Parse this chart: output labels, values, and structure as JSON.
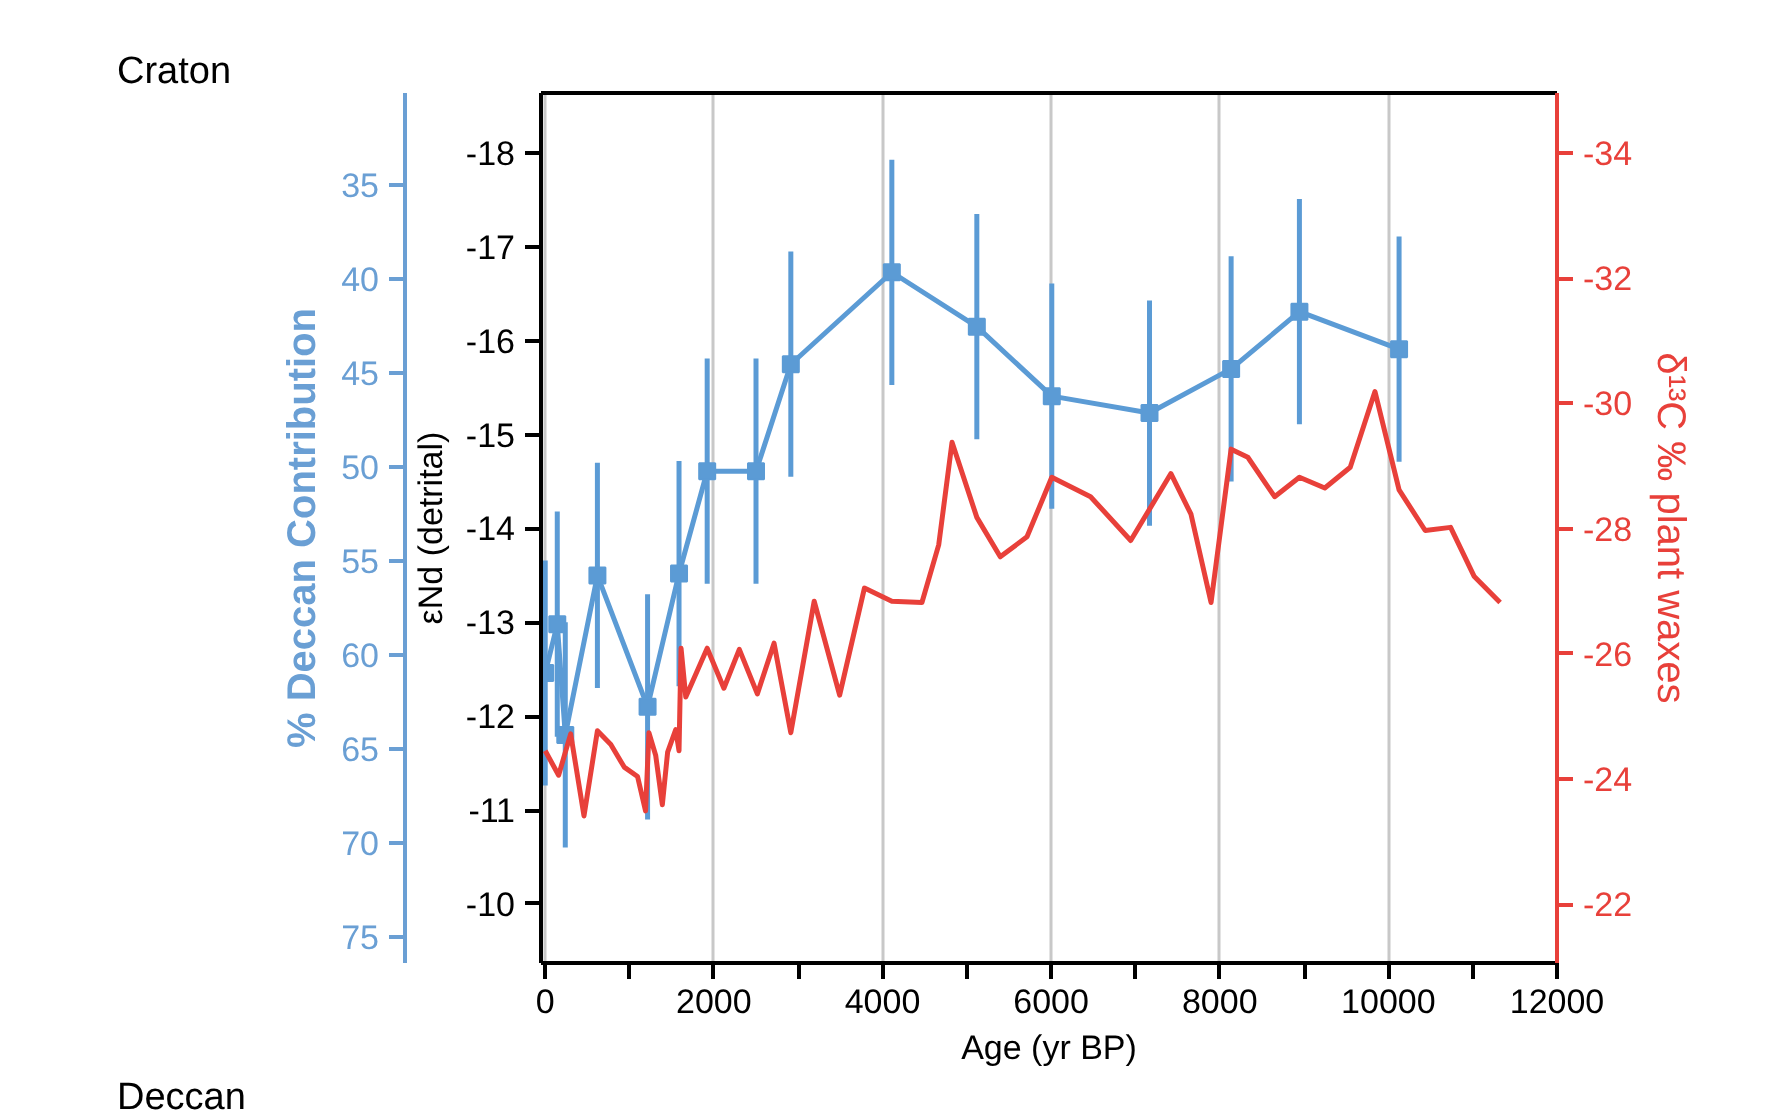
{
  "chart_data": {
    "type": "line",
    "xlabel": "Age (yr BP)",
    "ylabel": "εNd (detrital)",
    "y2label": "δ¹³C ‰ plant waxes",
    "y3label": "% Deccan Contribution",
    "annotations": [
      "Craton",
      "Deccan"
    ],
    "xlim": [
      -50,
      12000
    ],
    "xticks": [
      0,
      {
        "value": 1000,
        "label": null
      },
      2000,
      {
        "value": 3000,
        "label": null
      },
      4000,
      {
        "value": 5000,
        "label": null
      },
      6000,
      {
        "value": 7000,
        "label": null
      },
      8000,
      {
        "value": 9000,
        "label": null
      },
      10000,
      {
        "value": 11000,
        "label": null
      },
      12000
    ],
    "ylim": [
      -9.37,
      -18.64
    ],
    "yticks": [
      -10,
      -11,
      -12,
      -13,
      -14,
      -15,
      -16,
      -17,
      -18
    ],
    "y2lim": [
      -21.06,
      -34.96
    ],
    "y2ticks": [
      -22,
      -24,
      -26,
      -28,
      -30,
      -32,
      -34
    ],
    "y3lim": [
      76.4,
      30.1
    ],
    "y3ticks": [
      35,
      40,
      45,
      50,
      55,
      60,
      65,
      70,
      75
    ],
    "grid": "x",
    "series": [
      {
        "color": "#5b9bd5",
        "marker": "square",
        "line_style": "solid",
        "axis": "y",
        "x": [
          0,
          143,
          238,
          619,
          1214,
          1587,
          1921,
          2500,
          2913,
          4111,
          5119,
          6008,
          7167,
          8135,
          8945,
          10127
        ],
        "values": [
          -12.46,
          -12.98,
          -11.8,
          -13.5,
          -12.1,
          -13.52,
          -14.61,
          -14.61,
          -15.75,
          -16.73,
          -16.15,
          -15.41,
          -15.23,
          -15.7,
          -16.31,
          -15.91
        ],
        "errors": [
          1.2,
          1.2,
          1.2,
          1.2,
          1.2,
          1.2,
          1.2,
          1.2,
          1.2,
          1.2,
          1.2,
          1.2,
          1.2,
          1.2,
          1.2,
          1.2
        ]
      },
      {
        "color": "#e8403a",
        "marker": "none",
        "line_style": "solid",
        "axis": "y2",
        "x": [
          0,
          159,
          302,
          460,
          619,
          778,
          937,
          1095,
          1190,
          1230,
          1310,
          1389,
          1452,
          1548,
          1587,
          1611,
          1667,
          1921,
          2119,
          2302,
          2516,
          2714,
          2913,
          3190,
          3492,
          3786,
          4111,
          4468,
          4667,
          4825,
          5119,
          5397,
          5714,
          6008,
          6468,
          6944,
          7421,
          7659,
          7897,
          8135,
          8333,
          8651,
          8945,
          9246,
          9548,
          9841,
          10127,
          10437,
          10738,
          11016,
          11325
        ],
        "values": [
          -24.45,
          -24.06,
          -24.72,
          -23.41,
          -24.77,
          -24.55,
          -24.19,
          -24.04,
          -23.49,
          -24.74,
          -24.38,
          -23.59,
          -24.43,
          -24.79,
          -24.45,
          -26.09,
          -25.31,
          -26.09,
          -25.45,
          -26.07,
          -25.36,
          -26.17,
          -24.74,
          -26.84,
          -25.34,
          -27.05,
          -26.84,
          -26.82,
          -27.74,
          -29.38,
          -28.18,
          -27.55,
          -27.87,
          -28.82,
          -28.51,
          -27.81,
          -28.88,
          -28.23,
          -26.82,
          -29.27,
          -29.14,
          -28.51,
          -28.82,
          -28.65,
          -28.98,
          -30.19,
          -28.62,
          -27.97,
          -28.02,
          -27.24,
          -26.82
        ]
      }
    ]
  }
}
